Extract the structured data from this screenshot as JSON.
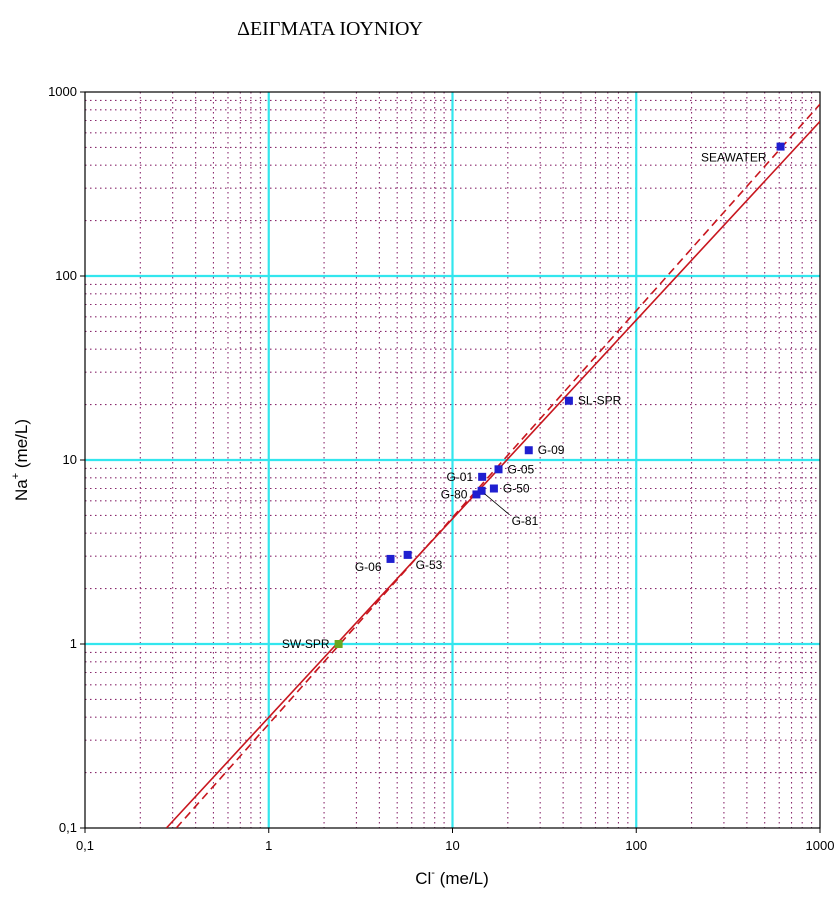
{
  "chart_data": {
    "type": "scatter",
    "title": "ΔΕΙΓΜΑΤΑ ΙΟΥΝΙΟΥ",
    "xlabel": "Cl",
    "xlabel_sup": "-",
    "xlabel_unit": " (me/L)",
    "ylabel": "Na",
    "ylabel_sup": "+",
    "ylabel_unit": " (me/L)",
    "xscale": "log",
    "yscale": "log",
    "xlim": [
      0.1,
      1000
    ],
    "ylim": [
      0.1,
      1000
    ],
    "x_ticks": [
      {
        "value": 0.1,
        "label": "0,1"
      },
      {
        "value": 1,
        "label": "1"
      },
      {
        "value": 10,
        "label": "10"
      },
      {
        "value": 100,
        "label": "100"
      },
      {
        "value": 1000,
        "label": "1000"
      }
    ],
    "y_ticks": [
      {
        "value": 0.1,
        "label": "0,1"
      },
      {
        "value": 1,
        "label": "1"
      },
      {
        "value": 10,
        "label": "10"
      },
      {
        "value": 100,
        "label": "100"
      },
      {
        "value": 1000,
        "label": "1000"
      }
    ],
    "grid": {
      "major": true,
      "minor": true,
      "major_color": "#33e6ee",
      "minor_color": "#8a2a6e"
    },
    "points": [
      {
        "label": "SEAWATER",
        "x": 610,
        "y": 505,
        "color": "#1f1fd0",
        "label_pos": "left"
      },
      {
        "label": "SL-SPR",
        "x": 43,
        "y": 21,
        "color": "#1f1fd0",
        "label_pos": "right"
      },
      {
        "label": "G-09",
        "x": 26,
        "y": 11.3,
        "color": "#1f1fd0",
        "label_pos": "right"
      },
      {
        "label": "G-05",
        "x": 17.8,
        "y": 8.9,
        "color": "#1f1fd0",
        "label_pos": "right"
      },
      {
        "label": "G-01",
        "x": 14.5,
        "y": 8.1,
        "color": "#1f1fd0",
        "label_pos": "left"
      },
      {
        "label": "G-50",
        "x": 16.8,
        "y": 7.0,
        "color": "#1f1fd0",
        "label_pos": "right"
      },
      {
        "label": "G-80",
        "x": 13.5,
        "y": 6.5,
        "color": "#1f1fd0",
        "label_pos": "left"
      },
      {
        "label": "G-81",
        "x": 14.4,
        "y": 6.8,
        "color": "#1f1fd0",
        "label_pos": "leader"
      },
      {
        "label": "G-53",
        "x": 5.7,
        "y": 3.05,
        "color": "#1f1fd0",
        "label_pos": "below-right"
      },
      {
        "label": "G-06",
        "x": 4.6,
        "y": 2.9,
        "color": "#1f1fd0",
        "label_pos": "below-left"
      },
      {
        "label": "SW-SPR",
        "x": 2.4,
        "y": 1.0,
        "color": "#6aa820",
        "label_pos": "left"
      }
    ],
    "lines": [
      {
        "style": "solid",
        "color": "#c8161e",
        "points": [
          [
            0.2774,
            0.1
          ],
          [
            1000,
            692
          ]
        ]
      },
      {
        "style": "dashed",
        "color": "#c8161e",
        "points": [
          [
            0.314,
            0.1
          ],
          [
            1000,
            859
          ]
        ]
      }
    ]
  }
}
